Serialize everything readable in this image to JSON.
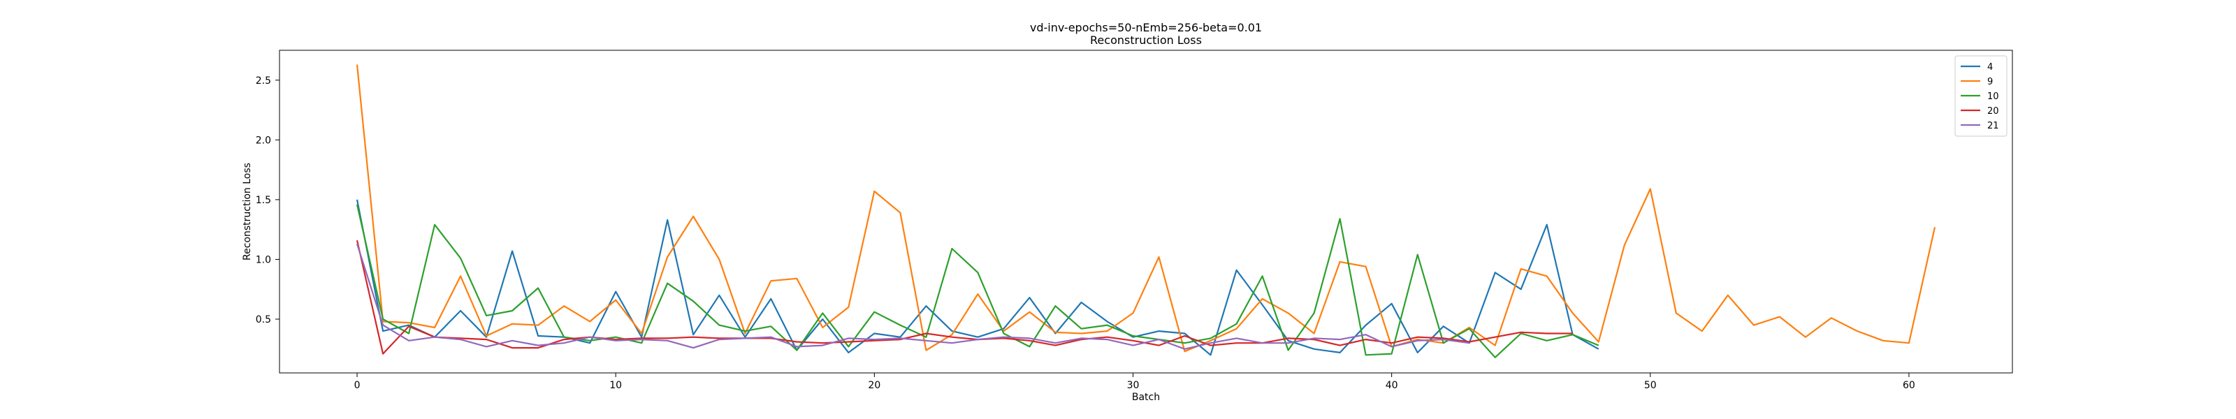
{
  "chart_data": {
    "type": "line",
    "title": "vd-inv-epochs=50-nEmb=256-beta=0.01",
    "subtitle": "Reconstruction Loss",
    "xlabel": "Batch",
    "ylabel": "Reconstruction Loss",
    "xlim": [
      -3,
      64
    ],
    "ylim": [
      0.05,
      2.75
    ],
    "xticks": [
      0,
      10,
      20,
      30,
      40,
      50,
      60
    ],
    "yticks": [
      0.5,
      1.0,
      1.5,
      2.0,
      2.5
    ],
    "ytick_labels": [
      "0.5",
      "1.0",
      "1.5",
      "2.0",
      "2.5"
    ],
    "grid": false,
    "legend_position": "top-right",
    "series": [
      {
        "name": "4",
        "color": "#1f77b4",
        "values": [
          1.5,
          0.4,
          0.45,
          0.35,
          0.57,
          0.35,
          1.07,
          0.36,
          0.35,
          0.3,
          0.73,
          0.35,
          1.33,
          0.37,
          0.7,
          0.35,
          0.67,
          0.24,
          0.5,
          0.22,
          0.38,
          0.35,
          0.61,
          0.4,
          0.35,
          0.42,
          0.68,
          0.38,
          0.64,
          0.48,
          0.35,
          0.4,
          0.38,
          0.2,
          0.91,
          0.62,
          0.32,
          0.25,
          0.22,
          0.45,
          0.63,
          0.22,
          0.44,
          0.3,
          0.89,
          0.75,
          1.29,
          0.37,
          0.25
        ]
      },
      {
        "name": "9",
        "color": "#ff7f0e",
        "values": [
          2.63,
          0.48,
          0.47,
          0.43,
          0.86,
          0.36,
          0.46,
          0.45,
          0.61,
          0.48,
          0.66,
          0.38,
          1.02,
          1.36,
          1.0,
          0.38,
          0.82,
          0.84,
          0.43,
          0.6,
          1.57,
          1.39,
          0.24,
          0.37,
          0.71,
          0.4,
          0.56,
          0.39,
          0.38,
          0.4,
          0.55,
          1.02,
          0.23,
          0.32,
          0.42,
          0.67,
          0.55,
          0.38,
          0.98,
          0.94,
          0.27,
          0.33,
          0.3,
          0.43,
          0.28,
          0.92,
          0.86,
          0.55,
          0.31,
          1.12,
          1.59,
          0.55,
          0.4,
          0.7,
          0.45,
          0.52,
          0.35,
          0.51,
          0.4,
          0.32,
          0.3,
          1.27
        ]
      },
      {
        "name": "10",
        "color": "#2ca02c",
        "values": [
          1.46,
          0.5,
          0.38,
          1.29,
          1.01,
          0.53,
          0.57,
          0.76,
          0.35,
          0.32,
          0.35,
          0.3,
          0.8,
          0.65,
          0.45,
          0.4,
          0.44,
          0.24,
          0.55,
          0.27,
          0.56,
          0.45,
          0.35,
          1.09,
          0.89,
          0.38,
          0.27,
          0.61,
          0.42,
          0.45,
          0.36,
          0.33,
          0.3,
          0.34,
          0.46,
          0.86,
          0.24,
          0.55,
          1.34,
          0.2,
          0.21,
          1.04,
          0.3,
          0.42,
          0.18,
          0.38,
          0.32,
          0.37,
          0.28
        ]
      },
      {
        "name": "20",
        "color": "#d62728",
        "values": [
          1.16,
          0.21,
          0.44,
          0.35,
          0.34,
          0.33,
          0.26,
          0.26,
          0.33,
          0.35,
          0.33,
          0.34,
          0.34,
          0.35,
          0.34,
          0.34,
          0.34,
          0.31,
          0.3,
          0.31,
          0.32,
          0.33,
          0.38,
          0.35,
          0.33,
          0.34,
          0.32,
          0.28,
          0.33,
          0.35,
          0.32,
          0.28,
          0.36,
          0.28,
          0.3,
          0.3,
          0.34,
          0.33,
          0.28,
          0.33,
          0.3,
          0.35,
          0.34,
          0.31,
          0.35,
          0.39,
          0.38,
          0.38
        ]
      },
      {
        "name": "21",
        "color": "#9467bd",
        "values": [
          1.13,
          0.45,
          0.32,
          0.35,
          0.33,
          0.27,
          0.32,
          0.28,
          0.3,
          0.35,
          0.32,
          0.33,
          0.32,
          0.26,
          0.33,
          0.34,
          0.35,
          0.27,
          0.28,
          0.34,
          0.33,
          0.34,
          0.32,
          0.3,
          0.33,
          0.35,
          0.34,
          0.3,
          0.34,
          0.33,
          0.28,
          0.33,
          0.25,
          0.3,
          0.34,
          0.3,
          0.3,
          0.34,
          0.33,
          0.37,
          0.27,
          0.32,
          0.33,
          0.3
        ]
      }
    ]
  }
}
